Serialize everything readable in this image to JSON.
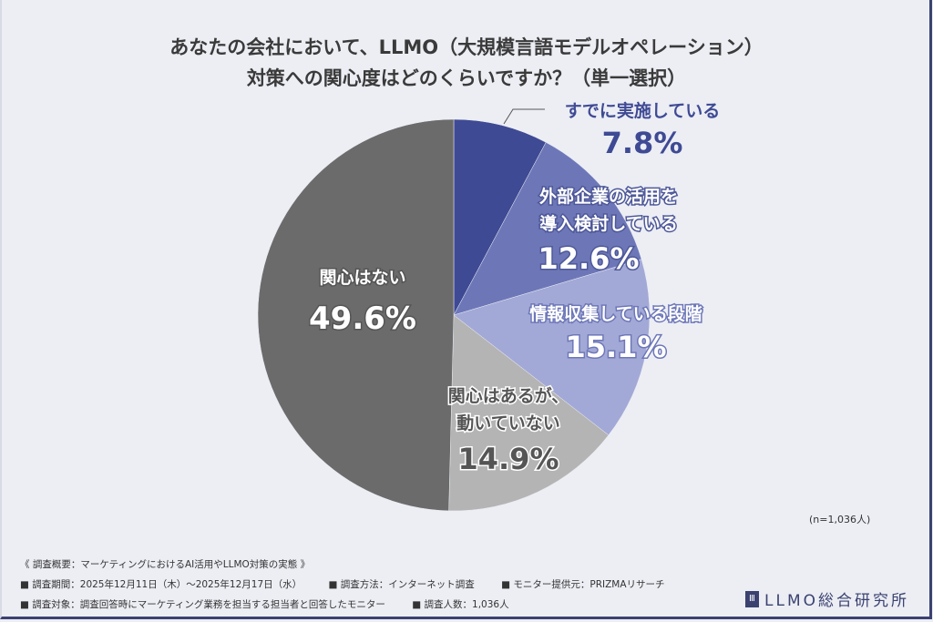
{
  "title_lines": [
    "あなたの会社において、LLMO（大規模言語モデルオペレーション）",
    "対策への関心度はどのくらいですか？（単一選択）"
  ],
  "chart_data": {
    "type": "pie",
    "start": "top",
    "direction": "clockwise",
    "slices": [
      {
        "label": [
          "すでに実施している"
        ],
        "value": 7.8,
        "display": "7.8%",
        "color": "#3f4a94"
      },
      {
        "label": [
          "外部企業の活用を",
          "導入検討している"
        ],
        "value": 12.6,
        "display": "12.6%",
        "color": "#6d77b8"
      },
      {
        "label": [
          "情報収集している段階"
        ],
        "value": 15.1,
        "display": "15.1%",
        "color": "#a3a9d6"
      },
      {
        "label": [
          "関心はあるが、",
          "動いていない"
        ],
        "value": 14.9,
        "display": "14.9%",
        "color": "#b4b4b4"
      },
      {
        "label": [
          "関心はない"
        ],
        "value": 49.6,
        "display": "49.6%",
        "color": "#6b6b6b"
      }
    ]
  },
  "sample_note": "(n=1,036人)",
  "footer": {
    "heading": "《 調査概要：マーケティングにおけるAI活用やLLMO対策の実態 》",
    "row1": [
      "■ 調査期間：2025年12月11日（木）～2025年12月17日（水）",
      "■ 調査方法：インターネット調査",
      "■ モニター提供元：PRIZMAリサーチ"
    ],
    "row2": [
      "■ 調査対象：調査回答時にマーケティング業務を担当する担当者と回答したモニター",
      "■ 調査人数：1,036人"
    ]
  },
  "logo": {
    "text": "LLMO総合研究所",
    "mark": "Ⅲ"
  }
}
